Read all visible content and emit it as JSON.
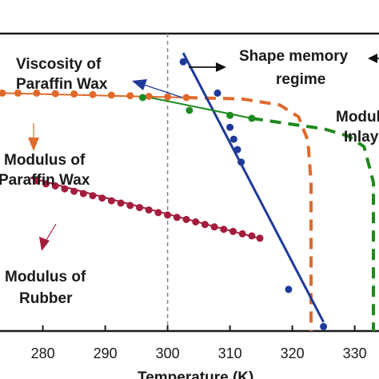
{
  "chart_data": {
    "type": "line",
    "xlabel": "Temperature (K)",
    "ylabel": "",
    "xlim": [
      273,
      333
    ],
    "xticks": [
      280,
      290,
      300,
      310,
      320,
      330
    ],
    "xtick_labels": [
      "280",
      "290",
      "300",
      "310",
      "320",
      "330"
    ],
    "reference_line_x": 300,
    "series": [
      {
        "name": "Viscosity of Paraffin Wax",
        "color": "#1f3a9a",
        "markers": [
          [
            302.5,
            0.905
          ],
          [
            308,
            0.8
          ],
          [
            310,
            0.685
          ],
          [
            310.6,
            0.645
          ],
          [
            311.2,
            0.61
          ],
          [
            311.8,
            0.568
          ],
          [
            319.4,
            0.14
          ],
          [
            325,
            0.015
          ]
        ],
        "fit": [
          [
            302.5,
            0.935
          ],
          [
            325,
            0.03
          ]
        ]
      },
      {
        "name": "Modulus of Paraffin Wax",
        "color": "#e06a2c",
        "markers": [
          [
            273.5,
            0.8
          ],
          [
            276,
            0.8
          ],
          [
            279,
            0.8
          ],
          [
            282,
            0.798
          ],
          [
            285,
            0.797
          ],
          [
            288,
            0.795
          ],
          [
            291,
            0.793
          ],
          [
            294,
            0.791
          ],
          [
            297,
            0.789
          ],
          [
            300,
            0.787
          ],
          [
            303,
            0.785
          ]
        ],
        "fit": [
          [
            273,
            0.8
          ],
          [
            303,
            0.785
          ]
        ],
        "trend": [
          [
            303,
            0.785
          ],
          [
            312,
            0.78
          ],
          [
            318,
            0.76
          ],
          [
            321,
            0.72
          ],
          [
            322.5,
            0.64
          ],
          [
            323,
            0.5
          ],
          [
            323,
            0.3
          ],
          [
            323,
            0.0
          ]
        ]
      },
      {
        "name": "Modulus of Inlay",
        "color": "#1f8a1f",
        "markers": [
          [
            296,
            0.785
          ],
          [
            303.5,
            0.742
          ],
          [
            310,
            0.725
          ],
          [
            313.5,
            0.715
          ]
        ],
        "fit": [
          [
            296,
            0.79
          ],
          [
            313.5,
            0.715
          ]
        ],
        "trend": [
          [
            313.5,
            0.715
          ],
          [
            320,
            0.695
          ],
          [
            325,
            0.68
          ],
          [
            329,
            0.655
          ],
          [
            331.5,
            0.62
          ],
          [
            333,
            0.5
          ],
          [
            333,
            0.0
          ]
        ]
      },
      {
        "name": "Modulus of Rubber",
        "color": "#a41d3c",
        "markers": [
          [
            279,
            0.505
          ],
          [
            280.5,
            0.495
          ],
          [
            282,
            0.488
          ],
          [
            283.5,
            0.478
          ],
          [
            285,
            0.47
          ],
          [
            286.5,
            0.462
          ],
          [
            288,
            0.455
          ],
          [
            289.5,
            0.447
          ],
          [
            291,
            0.438
          ],
          [
            292.5,
            0.43
          ],
          [
            294,
            0.422
          ],
          [
            295.5,
            0.415
          ],
          [
            297,
            0.407
          ],
          [
            298.5,
            0.398
          ],
          [
            300,
            0.39
          ],
          [
            301.5,
            0.382
          ],
          [
            303,
            0.375
          ],
          [
            304.5,
            0.367
          ],
          [
            306,
            0.358
          ],
          [
            307.5,
            0.35
          ],
          [
            309,
            0.342
          ],
          [
            310.5,
            0.335
          ],
          [
            312,
            0.327
          ],
          [
            313.5,
            0.32
          ],
          [
            314.8,
            0.312
          ]
        ],
        "fit": [
          [
            278,
            0.515
          ],
          [
            315,
            0.31
          ]
        ]
      }
    ],
    "annotations": {
      "viscosity": [
        "Viscosity of",
        "Paraffin Wax"
      ],
      "shape_memory": [
        "Shape memory",
        "regime"
      ],
      "paraffin_modulus": [
        "Modulus of",
        "Paraffin Wax"
      ],
      "rubber_modulus": [
        "Modulus of",
        "Rubber"
      ],
      "inlay_modulus": [
        "Modulu",
        "Inlay"
      ]
    }
  }
}
